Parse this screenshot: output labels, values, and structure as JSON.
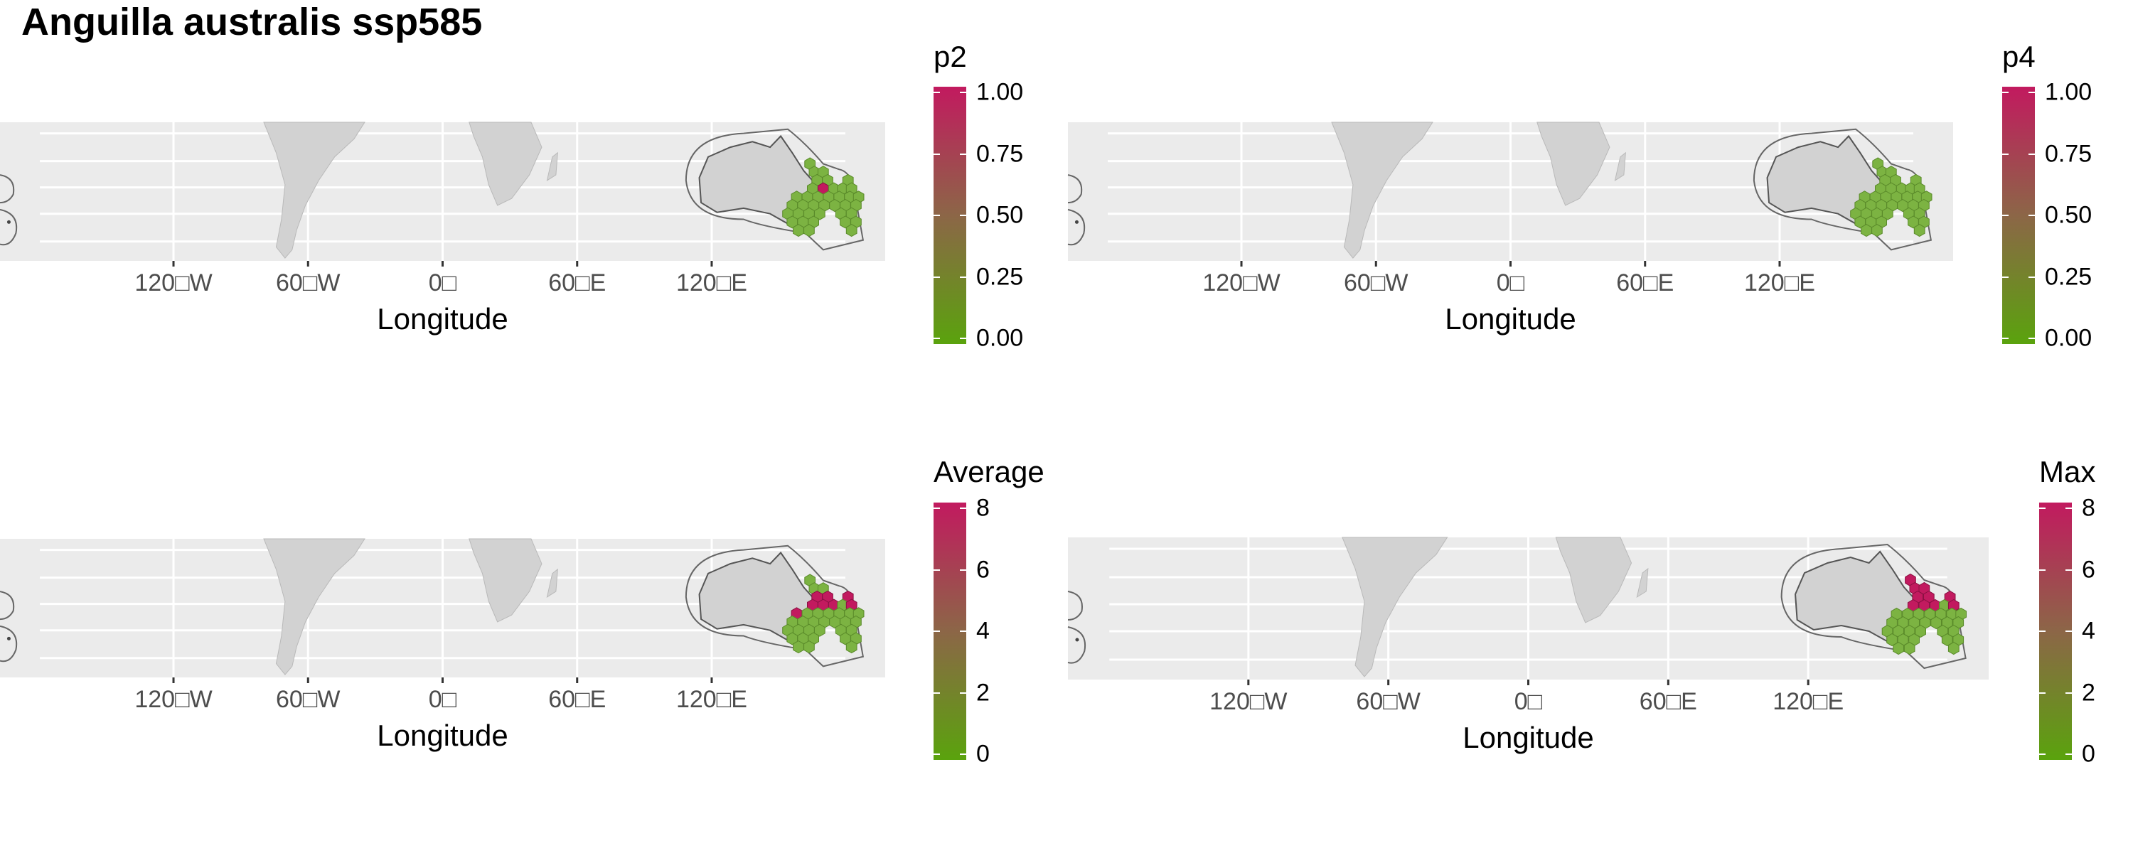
{
  "title": "Anguilla australis ssp585",
  "colors": {
    "panel_background": "#ebebeb",
    "grid": "#ffffff",
    "land": "#d2d2d2",
    "scale_high": "#c21a5f",
    "scale_mid": "#8c6647",
    "scale_low": "#5aa30d"
  },
  "panels": [
    {
      "legend_title": "p2",
      "legend_labels": [
        "1.00",
        "0.75",
        "0.50",
        "0.25",
        "0.00"
      ],
      "x_ticks": [
        "120□W",
        "60□W",
        "0□",
        "60□E",
        "120□E"
      ],
      "x_label": "Longitude"
    },
    {
      "legend_title": "p4",
      "legend_labels": [
        "1.00",
        "0.75",
        "0.50",
        "0.25",
        "0.00"
      ],
      "x_ticks": [
        "120□W",
        "60□W",
        "0□",
        "60□E",
        "120□E"
      ],
      "x_label": "Longitude"
    },
    {
      "legend_title": "Average",
      "legend_labels": [
        "8",
        "6",
        "4",
        "2",
        "0"
      ],
      "x_ticks": [
        "120□W",
        "60□W",
        "0□",
        "60□E",
        "120□E"
      ],
      "x_label": "Longitude"
    },
    {
      "legend_title": "Max",
      "legend_labels": [
        "8",
        "6",
        "4",
        "2",
        "0"
      ],
      "x_ticks": [
        "120□W",
        "60□W",
        "0□",
        "60□E",
        "120□E"
      ],
      "x_label": "Longitude"
    }
  ]
}
